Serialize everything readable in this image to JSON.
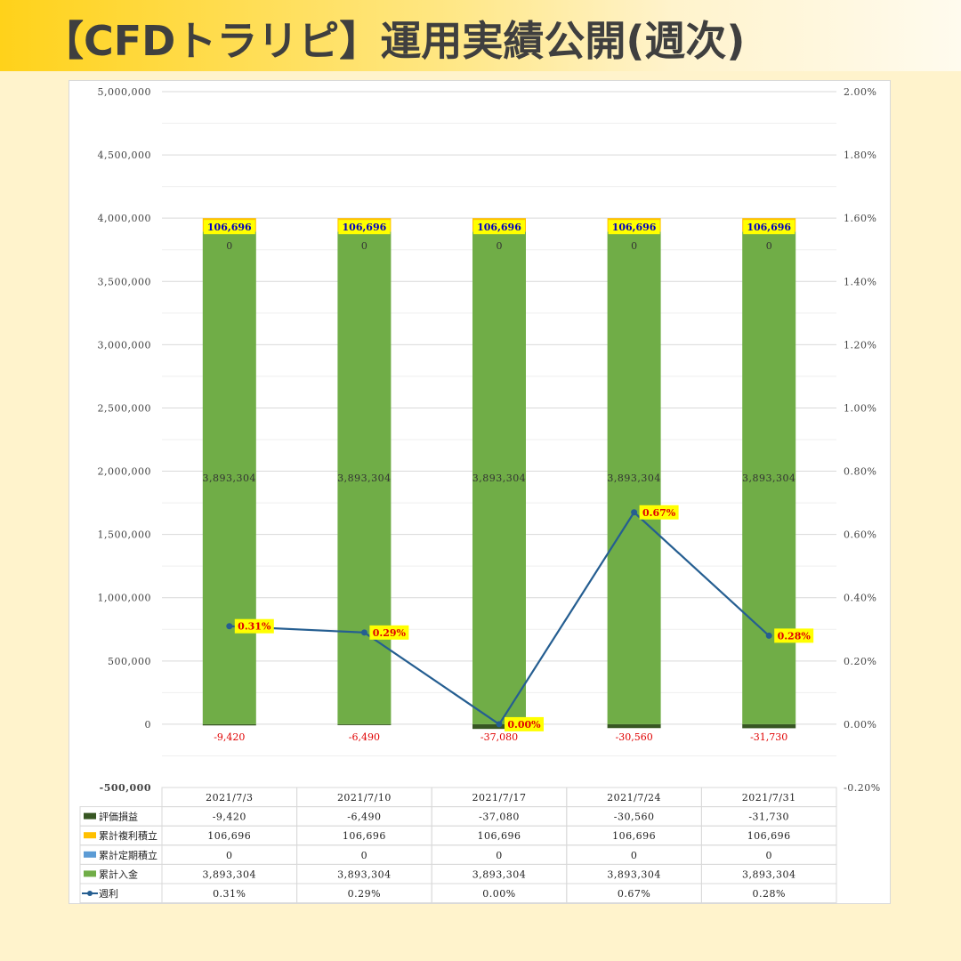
{
  "page": {
    "title": "【CFDトラリピ】運用実績公開(週次)"
  },
  "chart_data": {
    "type": "bar",
    "stacked": true,
    "categories": [
      "2021/7/3",
      "2021/7/10",
      "2021/7/17",
      "2021/7/24",
      "2021/7/31"
    ],
    "series": [
      {
        "name": "評価損益",
        "values": [
          -9420,
          -6490,
          -37080,
          -30560,
          -31730
        ],
        "color": "#375623",
        "labels": [
          "-9,420",
          "-6,490",
          "-37,080",
          "-30,560",
          "-31,730"
        ]
      },
      {
        "name": "累計複利積立",
        "values": [
          106696,
          106696,
          106696,
          106696,
          106696
        ],
        "color": "#ffc000",
        "labels": [
          "106,696",
          "106,696",
          "106,696",
          "106,696",
          "106,696"
        ]
      },
      {
        "name": "累計定期積立",
        "values": [
          0,
          0,
          0,
          0,
          0
        ],
        "color": "#5b9bd5",
        "labels": [
          "0",
          "0",
          "0",
          "0",
          "0"
        ]
      },
      {
        "name": "累計入金",
        "values": [
          3893304,
          3893304,
          3893304,
          3893304,
          3893304
        ],
        "color": "#70ad47",
        "labels": [
          "3,893,304",
          "3,893,304",
          "3,893,304",
          "3,893,304",
          "3,893,304"
        ]
      }
    ],
    "line_series": {
      "name": "週利",
      "values": [
        0.31,
        0.29,
        0.0,
        0.67,
        0.28
      ],
      "unit": "%",
      "color": "#255e91",
      "labels": [
        "0.31%",
        "0.29%",
        "0.00%",
        "0.67%",
        "0.28%"
      ]
    },
    "y_left": {
      "range": [
        -500000,
        5000000
      ],
      "ticks": [
        "-500,000",
        "0",
        "500,000",
        "1,000,000",
        "1,500,000",
        "2,000,000",
        "2,500,000",
        "3,000,000",
        "3,500,000",
        "4,000,000",
        "4,500,000",
        "5,000,000"
      ]
    },
    "y_right": {
      "range": [
        -0.2,
        2.0
      ],
      "unit": "%",
      "ticks": [
        "-0.20%",
        "0.00%",
        "0.20%",
        "0.40%",
        "0.60%",
        "0.80%",
        "1.00%",
        "1.20%",
        "1.40%",
        "1.60%",
        "1.80%",
        "2.00%"
      ]
    },
    "grid": true,
    "legend": "data-table",
    "table": {
      "rows": [
        {
          "label": "評価損益",
          "values": [
            "-9,420",
            "-6,490",
            "-37,080",
            "-30,560",
            "-31,730"
          ]
        },
        {
          "label": "累計複利積立",
          "values": [
            "106,696",
            "106,696",
            "106,696",
            "106,696",
            "106,696"
          ]
        },
        {
          "label": "累計定期積立",
          "values": [
            "0",
            "0",
            "0",
            "0",
            "0"
          ]
        },
        {
          "label": "累計入金",
          "values": [
            "3,893,304",
            "3,893,304",
            "3,893,304",
            "3,893,304",
            "3,893,304"
          ]
        },
        {
          "label": "週利",
          "values": [
            "0.31%",
            "0.29%",
            "0.00%",
            "0.67%",
            "0.28%"
          ]
        }
      ]
    }
  }
}
